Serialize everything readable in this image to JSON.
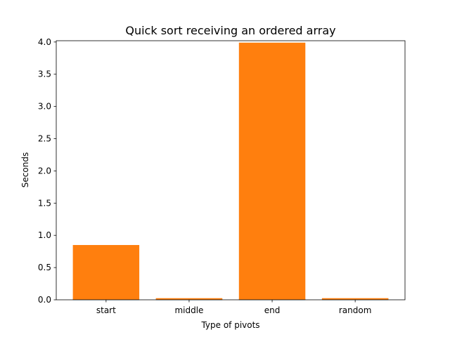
{
  "chart_data": {
    "type": "bar",
    "title": "Quick sort receiving an ordered array",
    "xlabel": "Type of pivots",
    "ylabel": "Seconds",
    "categories": [
      "start",
      "middle",
      "end",
      "random"
    ],
    "series": [
      {
        "values": [
          0.85,
          0.025,
          3.99,
          0.025
        ],
        "color": "#ff7f0e"
      }
    ],
    "underlay_color": "#1f77b4",
    "ylim": [
      0,
      4.02
    ],
    "yticks": [
      0.0,
      0.5,
      1.0,
      1.5,
      2.0,
      2.5,
      3.0,
      3.5,
      4.0
    ],
    "ytick_labels": [
      "0.0",
      "0.5",
      "1.0",
      "1.5",
      "2.0",
      "2.5",
      "3.0",
      "3.5",
      "4.0"
    ],
    "grid": false,
    "legend": "none"
  }
}
